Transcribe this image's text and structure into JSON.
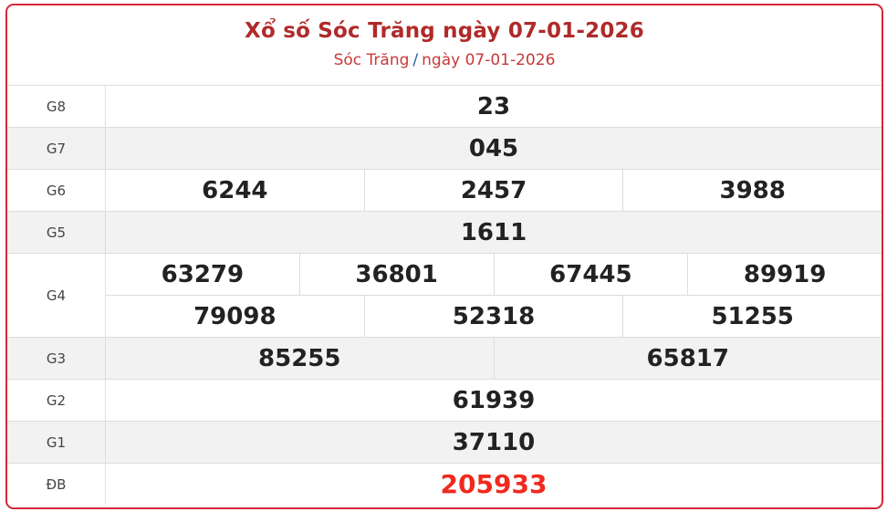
{
  "header": {
    "title": "Xổ số Sóc Trăng ngày 07-01-2026",
    "breadcrumb_province": "Sóc Trăng",
    "breadcrumb_separator": "/",
    "breadcrumb_date": "ngày 07-01-2026"
  },
  "colors": {
    "border": "#d3283a",
    "title": "#b02a2a",
    "special": "#f0291f"
  },
  "prizes": [
    {
      "label": "G8",
      "lines": [
        [
          "23"
        ]
      ]
    },
    {
      "label": "G7",
      "lines": [
        [
          "045"
        ]
      ]
    },
    {
      "label": "G6",
      "lines": [
        [
          "6244",
          "2457",
          "3988"
        ]
      ]
    },
    {
      "label": "G5",
      "lines": [
        [
          "1611"
        ]
      ]
    },
    {
      "label": "G4",
      "lines": [
        [
          "63279",
          "36801",
          "67445",
          "89919"
        ],
        [
          "79098",
          "52318",
          "51255"
        ]
      ]
    },
    {
      "label": "G3",
      "lines": [
        [
          "85255",
          "65817"
        ]
      ]
    },
    {
      "label": "G2",
      "lines": [
        [
          "61939"
        ]
      ]
    },
    {
      "label": "G1",
      "lines": [
        [
          "37110"
        ]
      ]
    },
    {
      "label": "ĐB",
      "lines": [
        [
          "205933"
        ]
      ]
    }
  ]
}
